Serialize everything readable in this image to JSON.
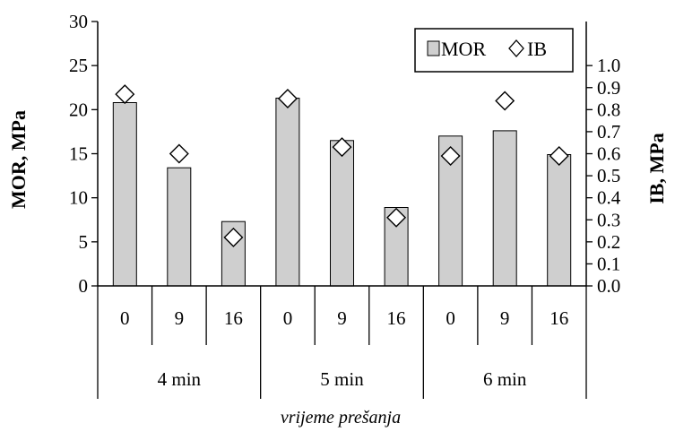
{
  "chart_data": {
    "type": "bar",
    "title": "",
    "xlabel": "vrijeme prešanja",
    "ylabel": "MOR, MPa",
    "y2label": "IB, MPa",
    "ylim": [
      0,
      30
    ],
    "y2lim": [
      0,
      1.2
    ],
    "yticks": [
      "0",
      "5",
      "10",
      "15",
      "20",
      "25",
      "30"
    ],
    "y2ticks": [
      "0.0",
      "0.1",
      "0.2",
      "0.3",
      "0.4",
      "0.5",
      "0.6",
      "0.7",
      "0.8",
      "0.9",
      "1.0"
    ],
    "categories": [
      "0",
      "9",
      "16",
      "0",
      "9",
      "16",
      "0",
      "9",
      "16"
    ],
    "groups": [
      "4 min",
      "5 min",
      "6 min"
    ],
    "legend_position": "top-right",
    "series": [
      {
        "name": "MOR",
        "type": "bar",
        "axis": "left",
        "color": "#cfcfcf",
        "values": [
          20.8,
          13.4,
          7.3,
          21.3,
          16.5,
          8.9,
          17.0,
          17.6,
          14.9
        ]
      },
      {
        "name": "IB",
        "type": "scatter",
        "axis": "right",
        "marker": "diamond",
        "values": [
          0.87,
          0.6,
          0.22,
          0.85,
          0.63,
          0.31,
          0.59,
          0.84,
          0.59
        ]
      }
    ]
  }
}
